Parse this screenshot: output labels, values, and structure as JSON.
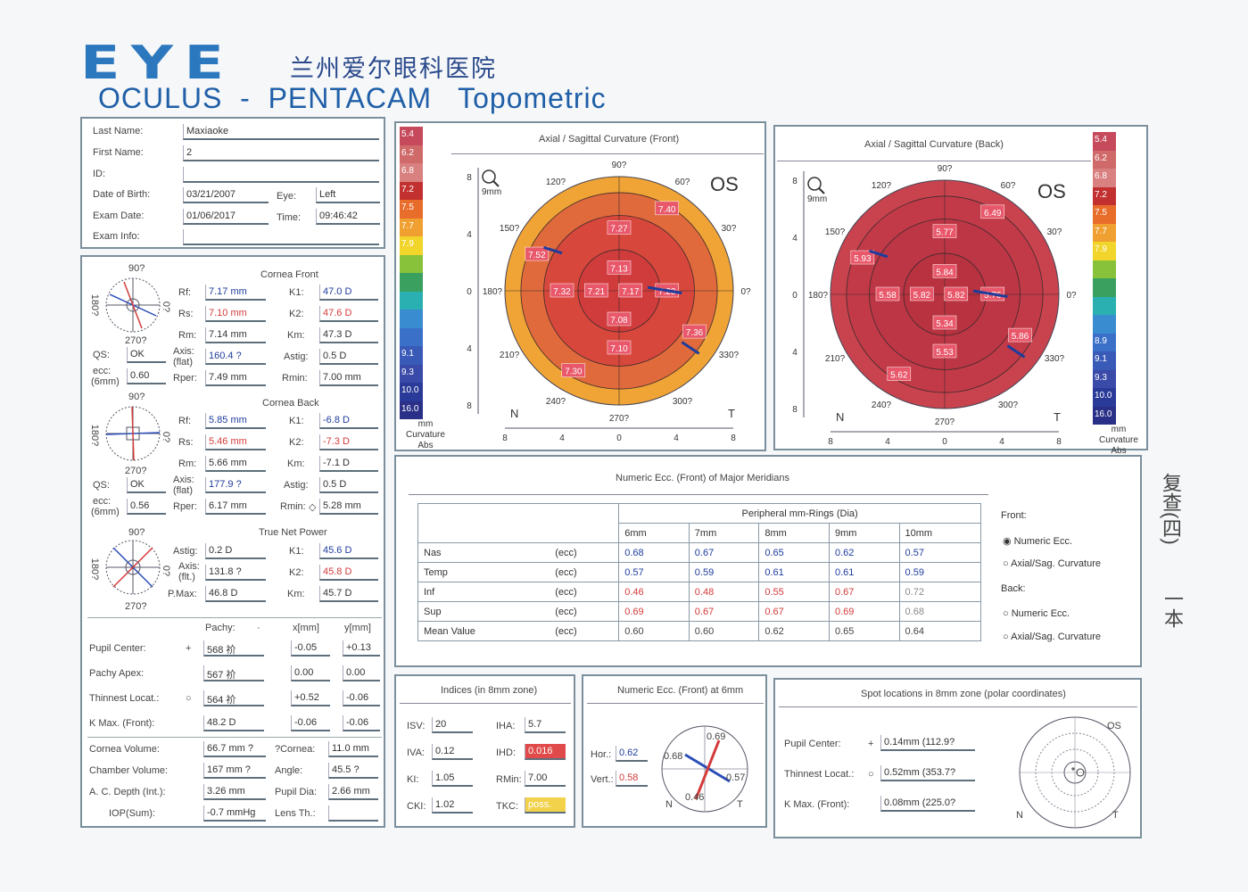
{
  "header": {
    "logo": "EYE",
    "hospital": "兰州爱尔眼科医院",
    "title": "OCULUS  -  PENTACAM   Topometric"
  },
  "patient": {
    "last_name_label": "Last Name:",
    "last_name": "Maxiaoke",
    "first_name_label": "First Name:",
    "first_name": "2",
    "id_label": "ID:",
    "id": "",
    "dob_label": "Date of Birth:",
    "dob": "03/21/2007",
    "eye_label": "Eye:",
    "eye": "Left",
    "exam_date_label": "Exam Date:",
    "exam_date": "01/06/2017",
    "time_label": "Time:",
    "time": "09:46:42",
    "exam_info_label": "Exam Info:",
    "exam_info": ""
  },
  "cornea_front": {
    "title": "Cornea Front",
    "rf_label": "Rf:",
    "rf": "7.17 mm",
    "rs_label": "Rs:",
    "rs": "7.10 mm",
    "rm_label": "Rm:",
    "rm": "7.14 mm",
    "axis_label": "Axis:",
    "axis_sub": "(flat)",
    "axis": "160.4 ?",
    "rper_label": "Rper:",
    "rper": "7.49 mm",
    "k1_label": "K1:",
    "k1": "47.0 D",
    "k2_label": "K2:",
    "k2": "47.6 D",
    "km_label": "Km:",
    "km": "47.3 D",
    "astig_label": "Astig:",
    "astig": "0.5 D",
    "rmin_label": "Rmin:",
    "rmin": "7.00 mm",
    "qs_label": "QS:",
    "qs": "OK",
    "ecc_label": "ecc:",
    "ecc_sub": "(6mm)",
    "ecc": "0.60",
    "compass": {
      "top": "90?",
      "bottom": "270?",
      "left": "180?",
      "right": "0?"
    }
  },
  "cornea_back": {
    "title": "Cornea Back",
    "rf_label": "Rf:",
    "rf": "5.85 mm",
    "rs_label": "Rs:",
    "rs": "5.46 mm",
    "rm_label": "Rm:",
    "rm": "5.66 mm",
    "axis_label": "Axis:",
    "axis_sub": "(flat)",
    "axis": "177.9 ?",
    "rper_label": "Rper:",
    "rper": "6.17 mm",
    "k1_label": "K1:",
    "k1": "-6.8 D",
    "k2_label": "K2:",
    "k2": "-7.3 D",
    "km_label": "Km:",
    "km": "-7.1 D",
    "astig_label": "Astig:",
    "astig": "0.5 D",
    "rmin_label": "Rmin:",
    "rmin_symbol": "◇",
    "rmin": "5.28 mm",
    "qs_label": "QS:",
    "qs": "OK",
    "ecc_label": "ecc:",
    "ecc_sub": "(6mm)",
    "ecc": "0.56",
    "compass": {
      "top": "90?",
      "bottom": "270?",
      "left": "180?",
      "right": "0?"
    }
  },
  "true_net_power": {
    "title": "True Net Power",
    "astig_label": "Astig:",
    "astig": "0.2 D",
    "axis_label": "Axis:",
    "axis_sub": "(flt.)",
    "axis": "131.8 ?",
    "pmax_label": "P.Max:",
    "pmax": "46.8 D",
    "k1_label": "K1:",
    "k1": "45.6 D",
    "k2_label": "K2:",
    "k2": "45.8 D",
    "km_label": "Km:",
    "km": "45.7 D",
    "compass": {
      "top": "90?",
      "bottom": "270?",
      "left": "180?",
      "right": "0?"
    }
  },
  "pachy": {
    "pachy_header": "Pachy:",
    "dot": "·",
    "x_header": "x[mm]",
    "y_header": "y[mm]",
    "rows": [
      {
        "label": "Pupil Center:",
        "symbol": "+",
        "pachy": "568 祄",
        "x": "-0.05",
        "y": "+0.13"
      },
      {
        "label": "Pachy Apex:",
        "symbol": "",
        "pachy": "567 祄",
        "x": "0.00",
        "y": "0.00"
      },
      {
        "label": "Thinnest Locat.:",
        "symbol": "○",
        "pachy": "564 祄",
        "x": "+0.52",
        "y": "-0.06"
      },
      {
        "label": "K Max. (Front):",
        "symbol": "",
        "pachy": "48.2 D",
        "x": "-0.06",
        "y": "-0.06"
      }
    ]
  },
  "volumes": {
    "cornea_volume_label": "Cornea Volume:",
    "cornea_volume": "66.7 mm ?",
    "chamber_volume_label": "Chamber Volume:",
    "chamber_volume": "167 mm ?",
    "ac_depth_label": "A. C. Depth (Int.):",
    "ac_depth": "3.26 mm",
    "iop_label": "IOP(Sum):",
    "iop": "-0.7 mmHg",
    "cornea_q_label": "?Cornea:",
    "cornea_q": "11.0 mm",
    "angle_label": "Angle:",
    "angle": "45.5 ?",
    "pupil_dia_label": "Pupil Dia:",
    "pupil_dia": "2.66 mm",
    "lens_th_label": "Lens Th.:",
    "lens_th": ""
  },
  "scale_front": {
    "values": [
      "5.4",
      "6.2",
      "6.8",
      "7.2",
      "7.5",
      "7.7",
      "7.9",
      "",
      "",
      "",
      "",
      "",
      "9.1",
      "9.3",
      "10.0",
      "16.0"
    ],
    "colors": [
      "#c64a5c",
      "#d06a6a",
      "#d98080",
      "#c23030",
      "#e86c2a",
      "#f0a030",
      "#f2d52a",
      "#88c23a",
      "#3aa060",
      "#2ab0b0",
      "#3a8cd0",
      "#3a70c8",
      "#3a5ab8",
      "#3a4aa8",
      "#2a3a98",
      "#2a3088"
    ],
    "unit": "mm",
    "type": "Curvature",
    "mode": "Abs"
  },
  "scale_back": {
    "values": [
      "5.4",
      "6.2",
      "6.8",
      "7.2",
      "7.5",
      "7.7",
      "7.9",
      "",
      "",
      "",
      "",
      "8.9",
      "9.1",
      "9.3",
      "10.0",
      "16.0"
    ],
    "colors": [
      "#c64a5c",
      "#d06a6a",
      "#d98080",
      "#c23030",
      "#e86c2a",
      "#f0a030",
      "#f2d52a",
      "#88c23a",
      "#3aa060",
      "#2ab0b0",
      "#3a8cd0",
      "#3a70c8",
      "#3a5ab8",
      "#3a4aa8",
      "#2a3a98",
      "#2a3088"
    ],
    "unit": "mm",
    "type": "Curvature",
    "mode": "Abs"
  },
  "map_front": {
    "title": "Axial / Sagittal Curvature (Front)",
    "eye": "OS",
    "zoom": "9mm",
    "angles": {
      "a90": "90?",
      "a60": "60?",
      "a30": "30?",
      "a0": "0?",
      "a330": "330?",
      "a300": "300?",
      "a270": "270?",
      "a240": "240?",
      "a210": "210?",
      "a180": "180?",
      "a150": "150?",
      "a120": "120?"
    },
    "y_ticks": [
      "8",
      "4",
      "0",
      "4",
      "8"
    ],
    "x_ticks": [
      "8",
      "4",
      "0",
      "4",
      "8"
    ],
    "n_label": "N",
    "t_label": "T",
    "values": [
      "7.40",
      "7.27",
      "7.52",
      "7.13",
      "7.32",
      "7.21",
      "7.17",
      "7.23",
      "7.08",
      "7.36",
      "7.10",
      "7.30"
    ],
    "fill_colors": {
      "outer": "#f0a436",
      "mid": "#e06a3c",
      "inner": "#d8473c",
      "core": "#d03c3c"
    }
  },
  "map_back": {
    "title": "Axial / Sagittal Curvature (Back)",
    "eye": "OS",
    "zoom": "9mm",
    "angles": {
      "a90": "90?",
      "a60": "60?",
      "a30": "30?",
      "a0": "0?",
      "a330": "330?",
      "a300": "300?",
      "a270": "270?",
      "a240": "240?",
      "a210": "210?",
      "a180": "180?",
      "a150": "150?",
      "a120": "120?"
    },
    "y_ticks": [
      "8",
      "4",
      "0",
      "4",
      "8"
    ],
    "x_ticks": [
      "8",
      "4",
      "0",
      "4",
      "8"
    ],
    "n_label": "N",
    "t_label": "T",
    "values": [
      "6.49",
      "5.77",
      "5.93",
      "5.84",
      "5.58",
      "5.82",
      "5.82",
      "5.76",
      "5.34",
      "5.86",
      "5.53",
      "5.62"
    ],
    "fill_colors": {
      "outer": "#c8434e",
      "mid": "#c23a48",
      "inner": "#bd3645",
      "core": "#b83240"
    }
  },
  "ecc_table": {
    "title": "Numeric Ecc. (Front) of Major Meridians",
    "header_group": "Peripheral mm-Rings (Dia)",
    "rings": [
      "6mm",
      "7mm",
      "8mm",
      "9mm",
      "10mm"
    ],
    "rows": [
      {
        "name": "Nas",
        "unit": "(ecc)",
        "values": [
          "0.68",
          "0.67",
          "0.65",
          "0.62",
          "0.57"
        ],
        "color": "blue"
      },
      {
        "name": "Temp",
        "unit": "(ecc)",
        "values": [
          "0.57",
          "0.59",
          "0.61",
          "0.61",
          "0.59"
        ],
        "color": "blue"
      },
      {
        "name": "Inf",
        "unit": "(ecc)",
        "values": [
          "0.46",
          "0.48",
          "0.55",
          "0.67",
          "0.72"
        ],
        "color": "red"
      },
      {
        "name": "Sup",
        "unit": "(ecc)",
        "values": [
          "0.69",
          "0.67",
          "0.67",
          "0.69",
          "0.68"
        ],
        "color": "red"
      },
      {
        "name": "Mean Value",
        "unit": "(ecc)",
        "values": [
          "0.60",
          "0.60",
          "0.62",
          "0.65",
          "0.64"
        ],
        "color": "gray"
      }
    ],
    "options": {
      "front_label": "Front:",
      "front_numeric": "Numeric Ecc.",
      "front_axial": "Axial/Sag. Curvature",
      "back_label": "Back:",
      "back_numeric": "Numeric Ecc.",
      "back_axial": "Axial/Sag. Curvature"
    }
  },
  "indices": {
    "title": "Indices (in 8mm zone)",
    "isv_label": "ISV:",
    "isv": "20",
    "iva_label": "IVA:",
    "iva": "0.12",
    "ki_label": "KI:",
    "ki": "1.05",
    "cki_label": "CKI:",
    "cki": "1.02",
    "iha_label": "IHA:",
    "iha": "5.7",
    "ihd_label": "IHD:",
    "ihd": "0.016",
    "rmin_label": "RMin:",
    "rmin": "7.00",
    "tkc_label": "TKC:",
    "tkc": "poss.",
    "ihd_color": "#e04a4a",
    "tkc_color": "#f2d24a"
  },
  "ecc6": {
    "title": "Numeric Ecc. (Front) at 6mm",
    "hor_label": "Hor.:",
    "hor": "0.62",
    "vert_label": "Vert.:",
    "vert": "0.58",
    "top": "0.69",
    "left": "0.68",
    "right": "0.57",
    "bottom": "0.46",
    "n_label": "N",
    "t_label": "T"
  },
  "spots": {
    "title": "Spot locations in 8mm zone (polar coordinates)",
    "pupil_label": "Pupil Center:",
    "pupil_symbol": "+",
    "pupil": "0.14mm (112.9?",
    "thinnest_label": "Thinnest Locat.:",
    "thinnest_symbol": "○",
    "thinnest": "0.52mm (353.7?",
    "kmax_label": "K Max. (Front):",
    "kmax": "0.08mm (225.0?",
    "os_label": "OS",
    "n_label": "N",
    "t_label": "T"
  },
  "handwriting": {
    "note": "复查(四)",
    "note2": "一本"
  }
}
